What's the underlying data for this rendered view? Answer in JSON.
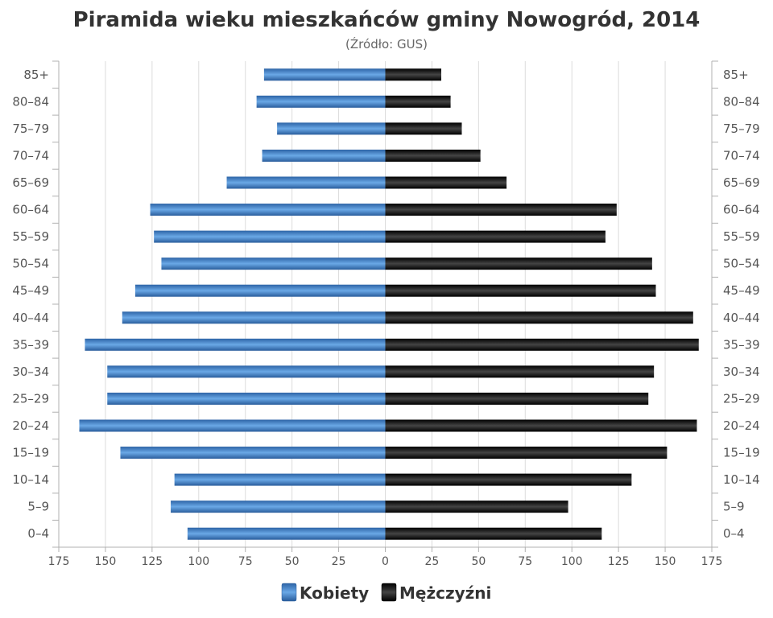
{
  "chart_data": {
    "type": "bar",
    "orientation": "horizontal-pyramid",
    "title": "Piramida wieku mieszkańców gminy Nowogród, 2014",
    "subtitle": "(Źródło: GUS)",
    "categories": [
      "85+",
      "80-84",
      "75-79",
      "70-74",
      "65-69",
      "60-64",
      "55-59",
      "50-54",
      "45-49",
      "40-44",
      "35-39",
      "30-34",
      "25-29",
      "20-24",
      "15-19",
      "10-14",
      "5-9",
      "0-4"
    ],
    "series": [
      {
        "name": "Kobiety",
        "color": "#3d7cc0",
        "side": "left",
        "values": [
          65,
          69,
          58,
          66,
          85,
          126,
          124,
          120,
          134,
          141,
          161,
          149,
          149,
          164,
          142,
          113,
          115,
          106
        ]
      },
      {
        "name": "Mężczyźni",
        "color": "#111111",
        "side": "right",
        "values": [
          30,
          35,
          41,
          51,
          65,
          124,
          118,
          143,
          145,
          165,
          168,
          144,
          141,
          167,
          151,
          132,
          98,
          116
        ]
      }
    ],
    "xlim": [
      -175,
      175
    ],
    "x_ticks": [
      -175,
      -150,
      -125,
      -100,
      -75,
      -50,
      -25,
      0,
      25,
      50,
      75,
      100,
      125,
      150,
      175
    ],
    "x_tick_labels": [
      "175",
      "150",
      "125",
      "100",
      "75",
      "50",
      "25",
      "0",
      "25",
      "50",
      "75",
      "100",
      "125",
      "150",
      "175"
    ],
    "grid": true,
    "legend_position": "bottom"
  }
}
